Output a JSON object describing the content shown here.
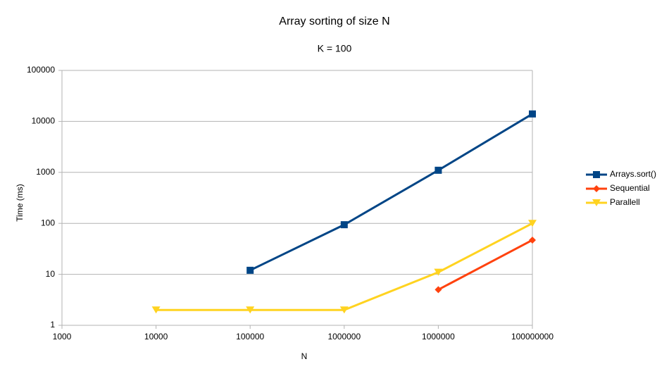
{
  "chart_data": {
    "type": "line",
    "title": "Array sorting of size N",
    "subtitle": "K = 100",
    "x_label": "N",
    "y_label": "Time (ms)",
    "categories": [
      "1000",
      "10000",
      "100000",
      "1000000",
      "1000000",
      "100000000"
    ],
    "series": [
      {
        "name": "Arrays.sort()",
        "color": "#004586",
        "marker": "square",
        "values": [
          null,
          null,
          12,
          94,
          1100,
          14000
        ]
      },
      {
        "name": "Sequential",
        "color": "#ff420e",
        "marker": "diamond",
        "values": [
          null,
          null,
          null,
          null,
          5,
          47
        ]
      },
      {
        "name": "Parallell",
        "color": "#ffd320",
        "marker": "triangle-down",
        "values": [
          null,
          2,
          2,
          2,
          11,
          100
        ]
      }
    ],
    "ylim": [
      1,
      100000
    ],
    "yticks": [
      1,
      10,
      100,
      1000,
      10000,
      100000
    ],
    "log_y": true,
    "grid": true,
    "legend": "right"
  }
}
